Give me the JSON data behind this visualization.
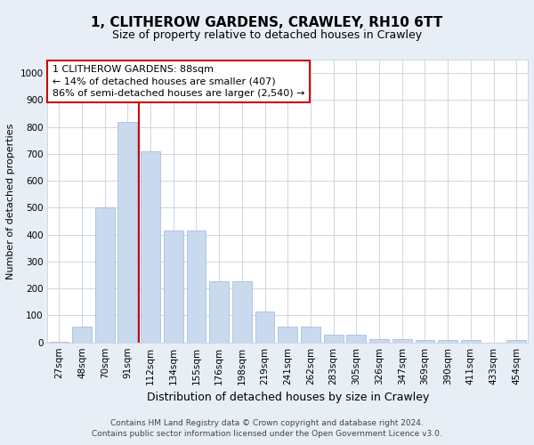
{
  "title": "1, CLITHEROW GARDENS, CRAWLEY, RH10 6TT",
  "subtitle": "Size of property relative to detached houses in Crawley",
  "xlabel": "Distribution of detached houses by size in Crawley",
  "ylabel": "Number of detached properties",
  "categories": [
    "27sqm",
    "48sqm",
    "70sqm",
    "91sqm",
    "112sqm",
    "134sqm",
    "155sqm",
    "176sqm",
    "198sqm",
    "219sqm",
    "241sqm",
    "262sqm",
    "283sqm",
    "305sqm",
    "326sqm",
    "347sqm",
    "369sqm",
    "390sqm",
    "411sqm",
    "433sqm",
    "454sqm"
  ],
  "bar_values": [
    4,
    58,
    500,
    820,
    710,
    415,
    415,
    228,
    228,
    115,
    57,
    57,
    30,
    30,
    12,
    12,
    10,
    10,
    8,
    0,
    8
  ],
  "bar_color": "#c9d9ee",
  "bar_edge_color": "#9fb8d8",
  "vline_pos": 3.5,
  "vline_color": "#cc0000",
  "annotation_text": "1 CLITHEROW GARDENS: 88sqm\n← 14% of detached houses are smaller (407)\n86% of semi-detached houses are larger (2,540) →",
  "annotation_box_color": "#ffffff",
  "annotation_box_edge_color": "#cc0000",
  "ylim": [
    0,
    1050
  ],
  "yticks": [
    0,
    100,
    200,
    300,
    400,
    500,
    600,
    700,
    800,
    900,
    1000
  ],
  "footer_line1": "Contains HM Land Registry data © Crown copyright and database right 2024.",
  "footer_line2": "Contains public sector information licensed under the Open Government Licence v3.0.",
  "bg_color": "#e8eef6",
  "plot_bg_color": "#ffffff",
  "grid_color": "#c8d0dc",
  "title_fontsize": 11,
  "subtitle_fontsize": 9,
  "xlabel_fontsize": 9,
  "ylabel_fontsize": 8,
  "tick_fontsize": 7.5,
  "annotation_fontsize": 8,
  "footer_fontsize": 6.5
}
